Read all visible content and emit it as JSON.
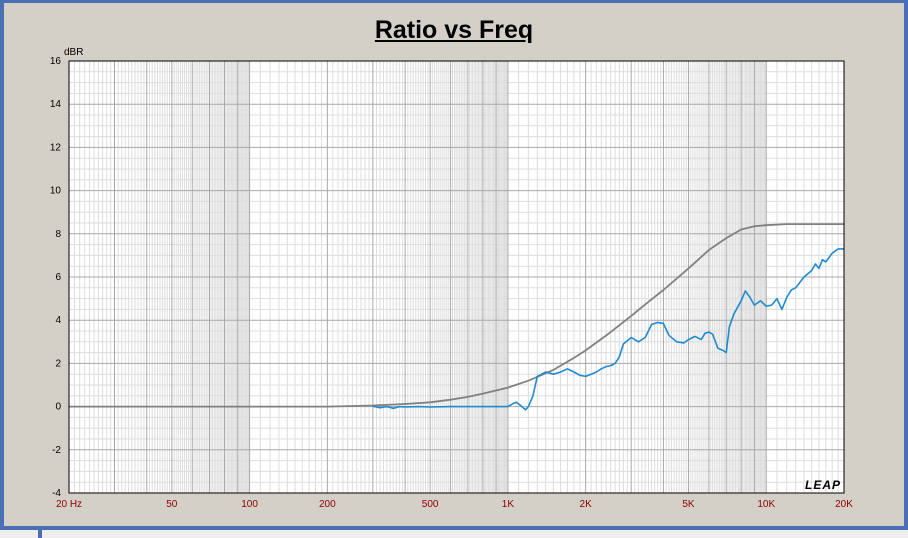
{
  "chart_data": {
    "type": "line",
    "title": "Ratio vs Freq",
    "ylabel": "dBR",
    "xscale": "log",
    "xlim": [
      20,
      20000
    ],
    "ylim": [
      -4,
      16
    ],
    "grid": true,
    "yticks": [
      16,
      14,
      12,
      10,
      8,
      6,
      4,
      2,
      0,
      -2,
      -4
    ],
    "yticklabels": [
      "16",
      "14",
      "12",
      "10",
      "8",
      "6",
      "4",
      "2",
      "0",
      "-2",
      "-4"
    ],
    "xticks": [
      20,
      50,
      100,
      200,
      500,
      1000,
      2000,
      5000,
      10000,
      20000
    ],
    "xticklabels": [
      "20  Hz",
      "50",
      "100",
      "200",
      "500",
      "1K",
      "2K",
      "5K",
      "10K",
      "20K"
    ],
    "watermark": "LEAP",
    "series": [
      {
        "color": "#808080",
        "x": [
          20,
          200,
          300,
          400,
          500,
          600,
          700,
          800,
          1000,
          1200,
          1500,
          1800,
          2000,
          2500,
          3000,
          3500,
          4000,
          5000,
          6000,
          7000,
          8000,
          9000,
          10000,
          12000,
          15000,
          20000
        ],
        "y": [
          0,
          0,
          0.05,
          0.12,
          0.2,
          0.32,
          0.45,
          0.6,
          0.88,
          1.2,
          1.7,
          2.25,
          2.6,
          3.45,
          4.2,
          4.85,
          5.4,
          6.4,
          7.25,
          7.8,
          8.2,
          8.35,
          8.4,
          8.45,
          8.45,
          8.45
        ]
      },
      {
        "color": "#1e8bd0",
        "x": [
          300,
          320,
          340,
          360,
          380,
          400,
          450,
          500,
          600,
          700,
          800,
          900,
          1000,
          1050,
          1080,
          1120,
          1170,
          1200,
          1250,
          1300,
          1400,
          1500,
          1600,
          1700,
          1800,
          1900,
          2000,
          2100,
          2200,
          2300,
          2400,
          2500,
          2600,
          2700,
          2800,
          3000,
          3200,
          3400,
          3600,
          3800,
          4000,
          4200,
          4500,
          4800,
          5000,
          5300,
          5600,
          5800,
          6000,
          6200,
          6500,
          6800,
          7000,
          7200,
          7500,
          8000,
          8300,
          8600,
          9000,
          9500,
          10000,
          10500,
          11000,
          11500,
          12000,
          12500,
          13000,
          14000,
          15000,
          15500,
          16000,
          16500,
          17000,
          18000,
          19000,
          20000
        ],
        "y": [
          0.02,
          -0.05,
          0,
          -0.08,
          0,
          -0.02,
          0,
          -0.02,
          0,
          0,
          0,
          0,
          0,
          0.15,
          0.2,
          0.05,
          -0.15,
          0,
          0.5,
          1.4,
          1.6,
          1.5,
          1.6,
          1.75,
          1.6,
          1.45,
          1.4,
          1.5,
          1.6,
          1.75,
          1.85,
          1.9,
          2.0,
          2.3,
          2.9,
          3.2,
          3.0,
          3.2,
          3.8,
          3.9,
          3.85,
          3.3,
          3.0,
          2.95,
          3.1,
          3.25,
          3.1,
          3.4,
          3.45,
          3.35,
          2.7,
          2.6,
          2.5,
          3.7,
          4.3,
          4.9,
          5.35,
          5.1,
          4.7,
          4.9,
          4.65,
          4.7,
          5.0,
          4.5,
          5.05,
          5.4,
          5.5,
          6.0,
          6.3,
          6.6,
          6.4,
          6.8,
          6.7,
          7.1,
          7.3,
          7.3
        ]
      }
    ]
  }
}
